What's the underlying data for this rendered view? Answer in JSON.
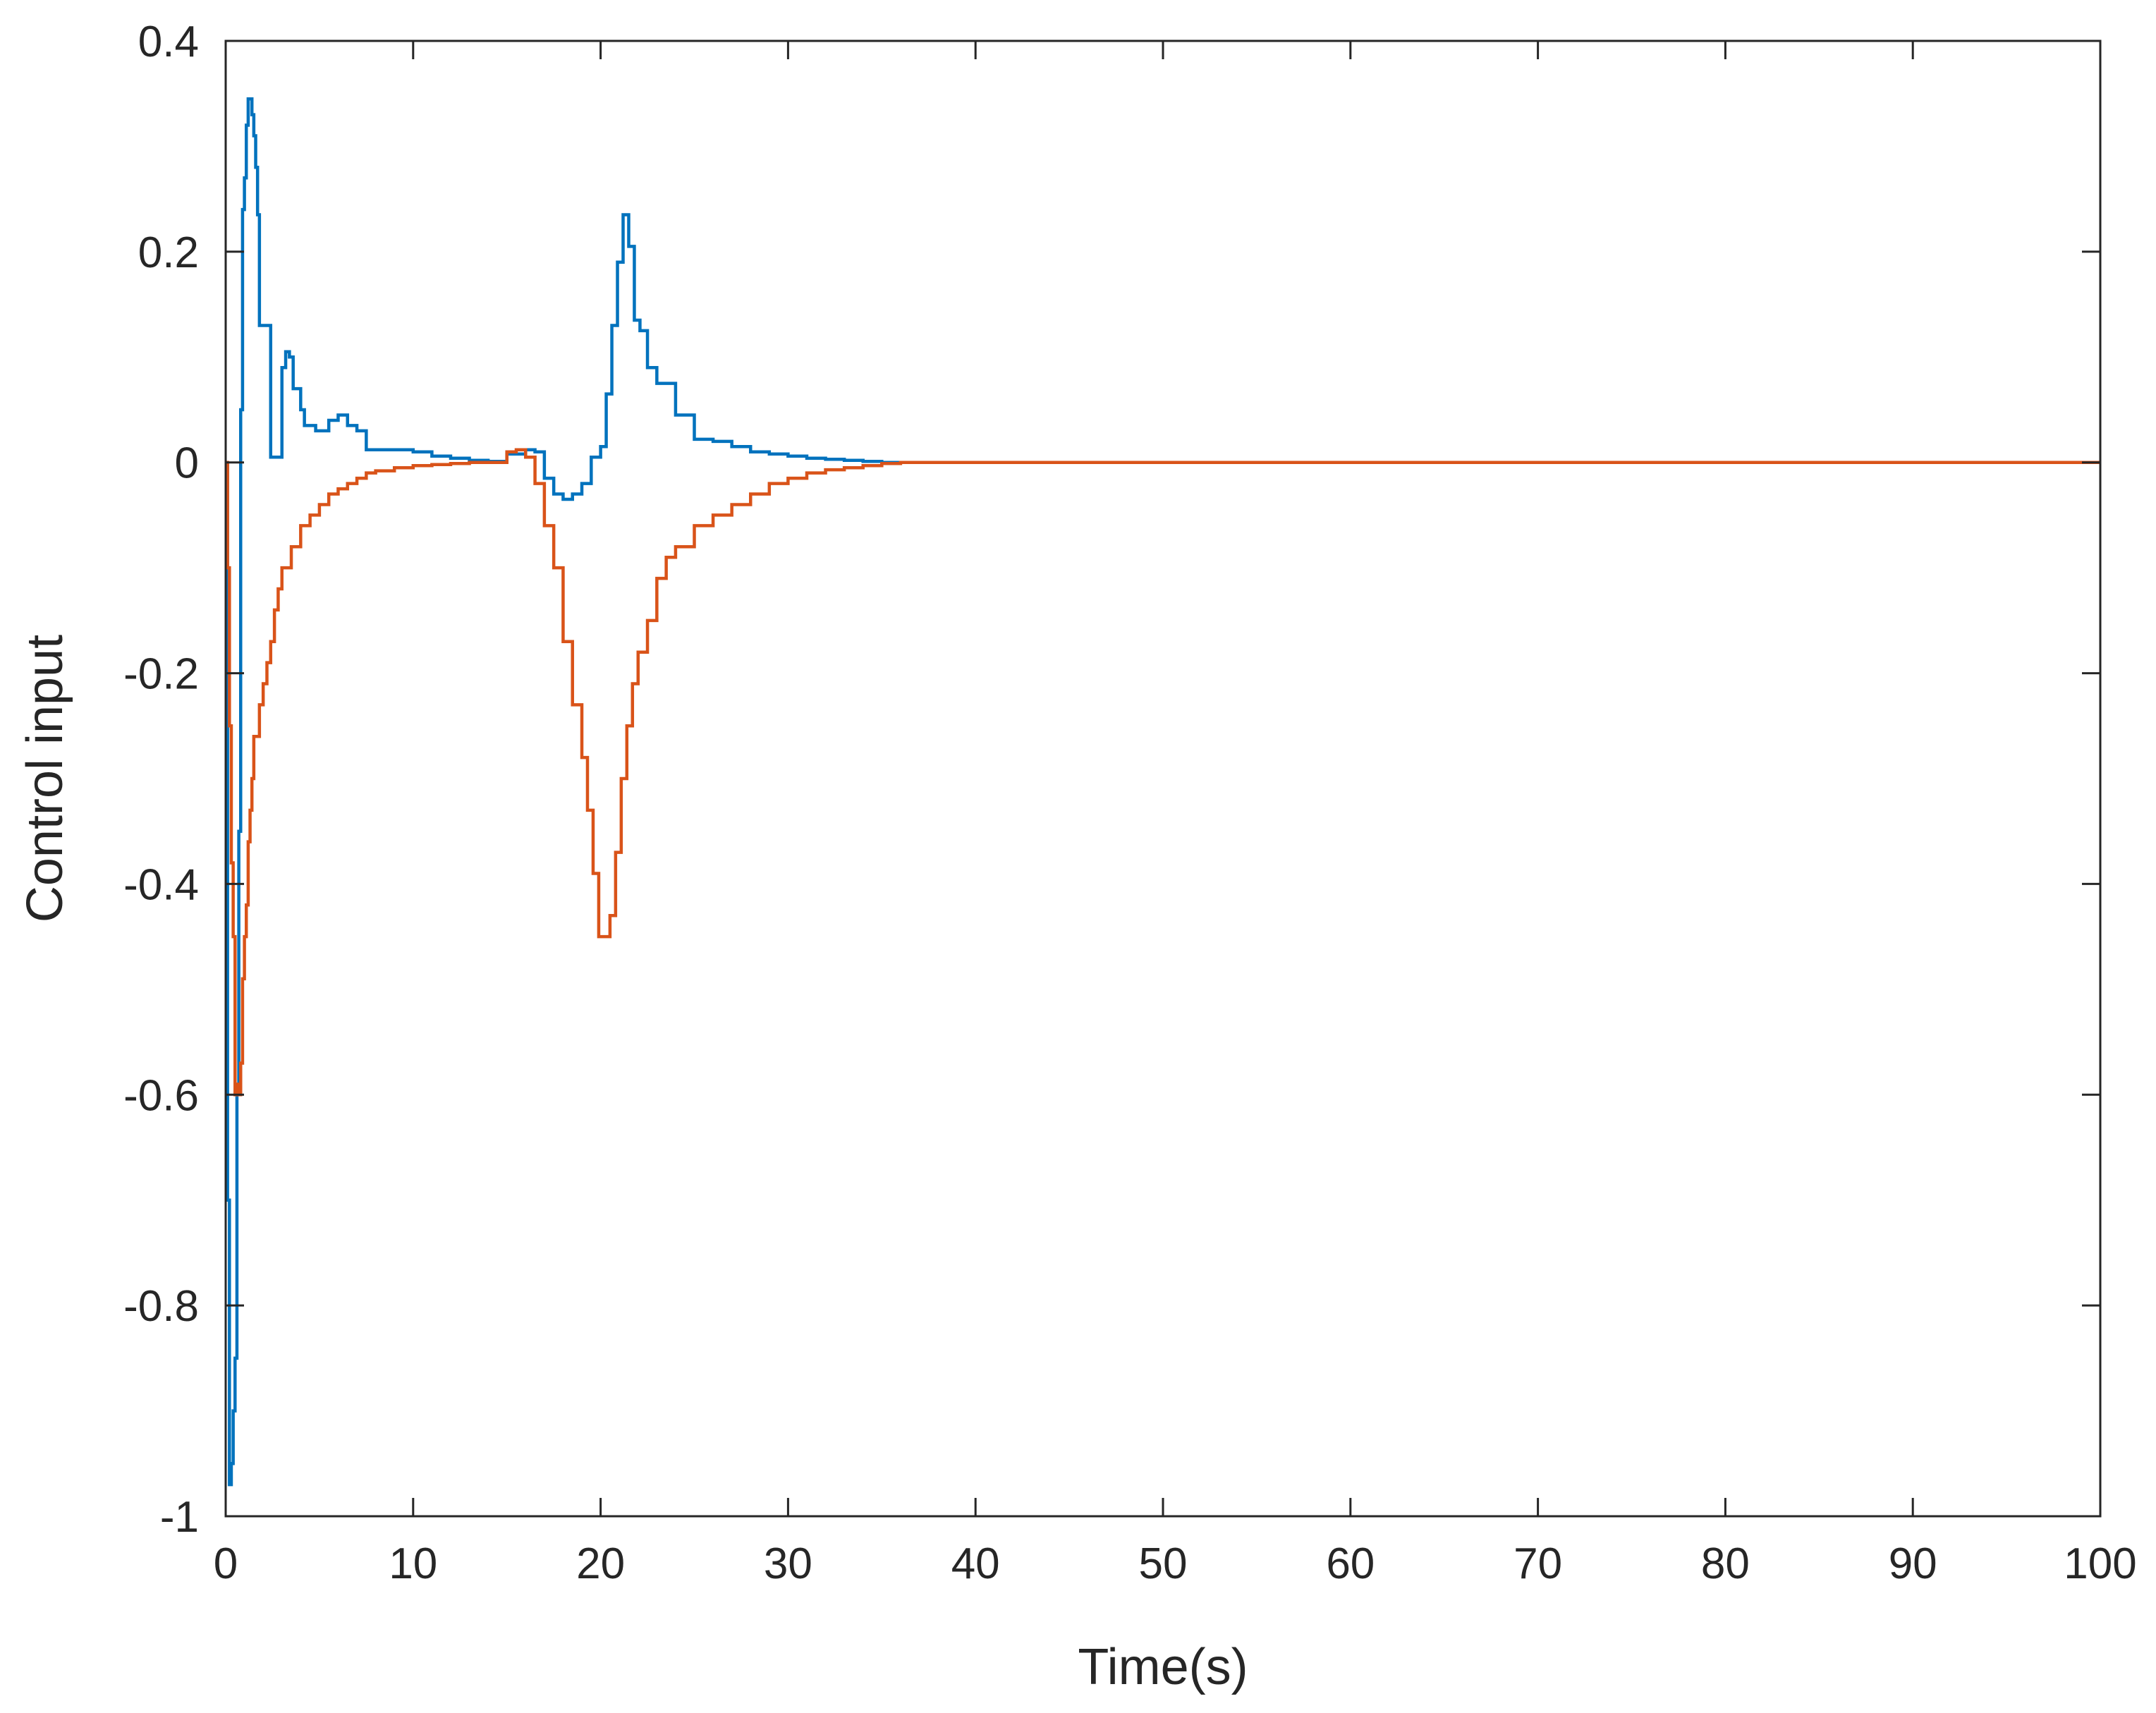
{
  "chart_data": {
    "type": "line",
    "title": "",
    "xlabel": "Time(s)",
    "ylabel": "Control input",
    "xlim": [
      0,
      100
    ],
    "ylim": [
      -1,
      0.4
    ],
    "xticks": [
      0,
      10,
      20,
      30,
      40,
      50,
      60,
      70,
      80,
      90,
      100
    ],
    "yticks": [
      -1,
      -0.8,
      -0.6,
      -0.4,
      -0.2,
      0,
      0.2,
      0.4
    ],
    "xtick_labels": [
      "0",
      "10",
      "20",
      "30",
      "40",
      "50",
      "60",
      "70",
      "80",
      "90",
      "100"
    ],
    "ytick_labels": [
      "-1",
      "-0.8",
      "-0.6",
      "-0.4",
      "-0.2",
      "0",
      "0.2",
      "0.4"
    ],
    "grid": false,
    "legend": "none",
    "series": [
      {
        "color": "#0072BD",
        "x": [
          0,
          0.1,
          0.2,
          0.3,
          0.4,
          0.5,
          0.6,
          0.7,
          0.8,
          0.9,
          1.0,
          1.1,
          1.2,
          1.3,
          1.4,
          1.5,
          1.6,
          1.7,
          1.8,
          2.0,
          2.2,
          2.4,
          2.6,
          2.8,
          3.0,
          3.2,
          3.4,
          3.6,
          3.8,
          4.0,
          4.2,
          4.5,
          4.8,
          5.0,
          5.5,
          6.0,
          6.5,
          7.0,
          7.5,
          8.0,
          9.0,
          10.0,
          11.0,
          12.0,
          13.0,
          14.0,
          15.0,
          16.0,
          16.5,
          17.0,
          17.5,
          18.0,
          18.5,
          19.0,
          19.5,
          20.0,
          20.3,
          20.6,
          20.9,
          21.2,
          21.5,
          21.8,
          22.1,
          22.5,
          23.0,
          24.0,
          25.0,
          26.0,
          27.0,
          28.0,
          29.0,
          30.0,
          31.0,
          32.0,
          33.0,
          34.0,
          35.0,
          36.0,
          100
        ],
        "y": [
          0,
          -0.7,
          -0.97,
          -0.95,
          -0.9,
          -0.85,
          -0.6,
          -0.35,
          0.05,
          0.24,
          0.27,
          0.32,
          0.345,
          0.345,
          0.33,
          0.31,
          0.28,
          0.235,
          0.13,
          0.13,
          0.13,
          0.005,
          0.005,
          0.005,
          0.09,
          0.105,
          0.1,
          0.07,
          0.07,
          0.05,
          0.035,
          0.035,
          0.03,
          0.03,
          0.04,
          0.045,
          0.035,
          0.03,
          0.012,
          0.012,
          0.012,
          0.01,
          0.006,
          0.004,
          0.002,
          0.001,
          0.008,
          0.012,
          0.01,
          -0.015,
          -0.03,
          -0.035,
          -0.03,
          -0.02,
          0.005,
          0.015,
          0.065,
          0.13,
          0.19,
          0.235,
          0.205,
          0.135,
          0.125,
          0.09,
          0.075,
          0.045,
          0.022,
          0.02,
          0.015,
          0.01,
          0.008,
          0.006,
          0.004,
          0.003,
          0.002,
          0.001,
          0.0,
          0.0,
          0.0
        ]
      },
      {
        "color": "#D95319",
        "x": [
          0,
          0.1,
          0.2,
          0.3,
          0.4,
          0.5,
          0.6,
          0.7,
          0.8,
          0.9,
          1.0,
          1.1,
          1.2,
          1.3,
          1.4,
          1.5,
          1.6,
          1.8,
          2.0,
          2.2,
          2.4,
          2.6,
          2.8,
          3.0,
          3.5,
          4.0,
          4.5,
          5.0,
          5.5,
          6.0,
          6.5,
          7.0,
          7.5,
          8.0,
          9.0,
          10.0,
          11.0,
          12.0,
          13.0,
          14.0,
          15.0,
          15.5,
          16.0,
          16.5,
          17.0,
          17.5,
          18.0,
          18.5,
          19.0,
          19.3,
          19.6,
          19.9,
          20.2,
          20.5,
          20.8,
          21.1,
          21.4,
          21.7,
          22.0,
          22.5,
          23.0,
          23.5,
          24.0,
          25.0,
          26.0,
          27.0,
          28.0,
          29.0,
          30.0,
          31.0,
          32.0,
          33.0,
          34.0,
          35.0,
          36.0,
          100
        ],
        "y": [
          0,
          -0.1,
          -0.25,
          -0.38,
          -0.45,
          -0.6,
          -0.59,
          -0.6,
          -0.57,
          -0.49,
          -0.45,
          -0.42,
          -0.36,
          -0.33,
          -0.3,
          -0.26,
          -0.26,
          -0.23,
          -0.21,
          -0.19,
          -0.17,
          -0.14,
          -0.12,
          -0.1,
          -0.08,
          -0.06,
          -0.05,
          -0.04,
          -0.03,
          -0.025,
          -0.02,
          -0.015,
          -0.01,
          -0.008,
          -0.005,
          -0.003,
          -0.002,
          -0.001,
          0.0,
          0.0,
          0.01,
          0.012,
          0.005,
          -0.02,
          -0.06,
          -0.1,
          -0.17,
          -0.23,
          -0.28,
          -0.33,
          -0.39,
          -0.45,
          -0.45,
          -0.43,
          -0.37,
          -0.3,
          -0.25,
          -0.21,
          -0.18,
          -0.15,
          -0.11,
          -0.09,
          -0.08,
          -0.06,
          -0.05,
          -0.04,
          -0.03,
          -0.02,
          -0.015,
          -0.01,
          -0.007,
          -0.005,
          -0.003,
          -0.001,
          0.0,
          0.0
        ]
      }
    ]
  }
}
